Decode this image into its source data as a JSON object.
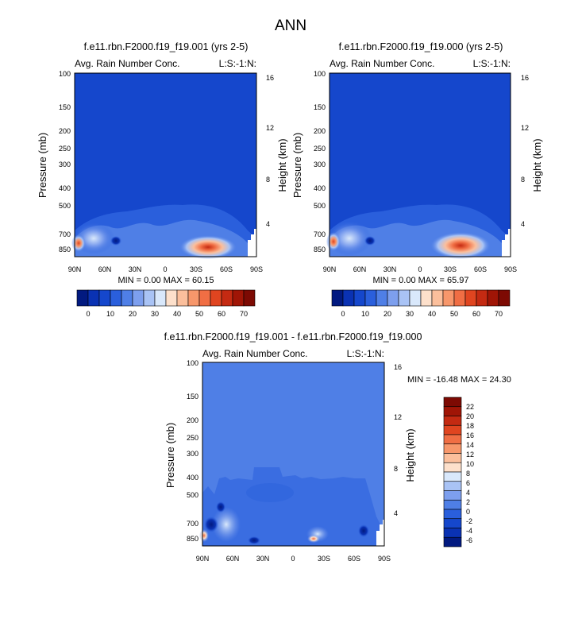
{
  "figure": {
    "title": "ANN"
  },
  "chart_data": [
    {
      "type": "heatmap",
      "title": "f.e11.rbn.F2000.f19_f19.001 (yrs 2-5)",
      "left_label": "Avg. Rain Number Conc.",
      "right_label": "L:S:-1:N:",
      "ylabel": "Pressure (mb)",
      "y2label": "Height (km)",
      "xticks": [
        "90N",
        "60N",
        "30N",
        "0",
        "30S",
        "60S",
        "90S"
      ],
      "yticks": [
        "100",
        "150",
        "200",
        "250",
        "300",
        "400",
        "500",
        "700",
        "850"
      ],
      "y2ticks": [
        "16",
        "12",
        "8",
        "4"
      ],
      "min_max": "MIN =   0.00   MAX =  60.15",
      "colorbar_ticks": [
        "0",
        "10",
        "20",
        "30",
        "40",
        "50",
        "60",
        "70"
      ],
      "colorbar_colors": [
        "#021a80",
        "#0a32b3",
        "#1547cc",
        "#2a5fdc",
        "#4f7fe6",
        "#7d9fee",
        "#a9c3f5",
        "#d9e8fb",
        "#fde0cb",
        "#fbbf9c",
        "#f7976b",
        "#f06e44",
        "#e04520",
        "#c42a12",
        "#a01506",
        "#7d0a03"
      ],
      "min": 0.0,
      "max": 60.15
    },
    {
      "type": "heatmap",
      "title": "f.e11.rbn.F2000.f19_f19.000 (yrs 2-5)",
      "left_label": "Avg. Rain Number Conc.",
      "right_label": "L:S:-1:N:",
      "ylabel": "Pressure (mb)",
      "y2label": "Height (km)",
      "xticks": [
        "90N",
        "60N",
        "30N",
        "0",
        "30S",
        "60S",
        "90S"
      ],
      "yticks": [
        "100",
        "150",
        "200",
        "250",
        "300",
        "400",
        "500",
        "700",
        "850"
      ],
      "y2ticks": [
        "16",
        "12",
        "8",
        "4"
      ],
      "min_max": "MIN =   0.00   MAX =  65.97",
      "colorbar_ticks": [
        "0",
        "10",
        "20",
        "30",
        "40",
        "50",
        "60",
        "70"
      ],
      "min": 0.0,
      "max": 65.97
    },
    {
      "type": "heatmap",
      "title": "f.e11.rbn.F2000.f19_f19.001 - f.e11.rbn.F2000.f19_f19.000",
      "left_label": "Avg. Rain Number Conc.",
      "right_label": "L:S:-1:N:",
      "ylabel": "Pressure (mb)",
      "y2label": "Height (km)",
      "xticks": [
        "90N",
        "60N",
        "30N",
        "0",
        "30S",
        "60S",
        "90S"
      ],
      "yticks": [
        "100",
        "150",
        "200",
        "250",
        "300",
        "400",
        "500",
        "700",
        "850"
      ],
      "y2ticks": [
        "16",
        "12",
        "8",
        "4"
      ],
      "min_max": "MIN = -16.48   MAX =  24.30",
      "colorbar_ticks": [
        "22",
        "20",
        "18",
        "16",
        "14",
        "12",
        "10",
        "8",
        "6",
        "4",
        "2",
        "0",
        "-2",
        "-4",
        "-6"
      ],
      "colorbar_colors": [
        "#7d0a03",
        "#a01506",
        "#c42a12",
        "#e04520",
        "#f06e44",
        "#f7976b",
        "#fbbf9c",
        "#fde0cb",
        "#d9e8fb",
        "#a9c3f5",
        "#7d9fee",
        "#4f7fe6",
        "#2a5fdc",
        "#1547cc",
        "#0a32b3",
        "#021a80"
      ],
      "min": -16.48,
      "max": 24.3
    }
  ]
}
